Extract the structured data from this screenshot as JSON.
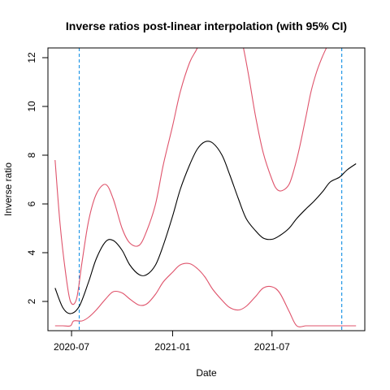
{
  "chart_data": {
    "type": "line",
    "title": "Inverse ratios post-linear interpolation (with 95% CI)",
    "xlabel": "Date",
    "ylabel": "Inverse ratio",
    "xlim": [
      "2020-05-19",
      "2021-12-17"
    ],
    "ylim": [
      0.8,
      12.4
    ],
    "x_ticks": [
      {
        "label": "2020-07",
        "date": "2020-07-01"
      },
      {
        "label": "2021-01",
        "date": "2021-01-01"
      },
      {
        "label": "2021-07",
        "date": "2021-07-01"
      }
    ],
    "y_ticks": [
      2,
      4,
      6,
      8,
      10,
      12
    ],
    "grid": false,
    "legend": "none",
    "colors": {
      "estimate": "#000000",
      "ci": "#DF536B",
      "reference": "#2297E6"
    },
    "reference_lines": [
      {
        "date": "2020-07-15"
      },
      {
        "date": "2021-11-05"
      }
    ],
    "series": [
      {
        "role": "estimate",
        "x": [
          "2020-06-01",
          "2020-06-15",
          "2020-06-29",
          "2020-07-15",
          "2020-08-01",
          "2020-08-15",
          "2020-09-01",
          "2020-09-15",
          "2020-10-01",
          "2020-10-15",
          "2020-11-01",
          "2020-11-15",
          "2020-12-01",
          "2020-12-15",
          "2021-01-01",
          "2021-01-15",
          "2021-02-01",
          "2021-02-15",
          "2021-03-01",
          "2021-03-15",
          "2021-04-01",
          "2021-04-15",
          "2021-05-01",
          "2021-05-15",
          "2021-06-01",
          "2021-06-15",
          "2021-07-01",
          "2021-07-15",
          "2021-08-01",
          "2021-08-15",
          "2021-09-01",
          "2021-09-15",
          "2021-10-01",
          "2021-10-15",
          "2021-11-01",
          "2021-11-15",
          "2021-12-01"
        ],
        "values": [
          2.55,
          1.75,
          1.5,
          1.8,
          2.8,
          3.75,
          4.45,
          4.5,
          4.1,
          3.5,
          3.1,
          3.1,
          3.5,
          4.3,
          5.5,
          6.6,
          7.6,
          8.25,
          8.55,
          8.5,
          8.0,
          7.2,
          6.2,
          5.4,
          4.9,
          4.6,
          4.55,
          4.7,
          5.0,
          5.4,
          5.8,
          6.1,
          6.5,
          6.9,
          7.1,
          7.4,
          7.65
        ]
      },
      {
        "role": "ci-upper",
        "x": [
          "2020-06-01",
          "2020-06-10",
          "2020-06-20",
          "2020-06-29",
          "2020-07-10",
          "2020-07-20",
          "2020-08-01",
          "2020-08-15",
          "2020-09-01",
          "2020-09-15",
          "2020-10-01",
          "2020-10-15",
          "2020-11-01",
          "2020-11-15",
          "2020-12-01",
          "2020-12-15",
          "2021-01-01",
          "2021-01-15",
          "2021-02-01",
          "2021-02-15",
          "2021-02-28",
          "2021-03-10",
          "2021-04-20",
          "2021-05-01",
          "2021-05-10",
          "2021-05-20",
          "2021-06-01",
          "2021-06-15",
          "2021-07-01",
          "2021-07-10",
          "2021-07-20",
          "2021-08-01",
          "2021-08-10",
          "2021-08-20",
          "2021-09-01",
          "2021-09-10",
          "2021-09-20",
          "2021-09-30",
          "2021-10-08"
        ],
        "values": [
          7.8,
          5.2,
          3.2,
          2.0,
          2.1,
          3.6,
          5.3,
          6.4,
          6.8,
          6.2,
          5.0,
          4.4,
          4.3,
          4.9,
          6.0,
          7.6,
          9.2,
          10.6,
          11.8,
          12.4,
          13.2,
          14.0,
          14.0,
          13.2,
          12.4,
          11.2,
          9.6,
          8.1,
          7.0,
          6.6,
          6.55,
          6.8,
          7.4,
          8.3,
          9.6,
          10.6,
          11.4,
          12.0,
          12.4
        ]
      },
      {
        "role": "ci-lower",
        "x": [
          "2020-06-01",
          "2020-06-15",
          "2020-06-29",
          "2020-07-05",
          "2020-07-20",
          "2020-08-01",
          "2020-08-15",
          "2020-09-01",
          "2020-09-15",
          "2020-10-01",
          "2020-10-15",
          "2020-11-01",
          "2020-11-15",
          "2020-12-01",
          "2020-12-15",
          "2021-01-01",
          "2021-01-15",
          "2021-02-01",
          "2021-02-15",
          "2021-03-01",
          "2021-03-15",
          "2021-04-01",
          "2021-04-15",
          "2021-05-01",
          "2021-05-15",
          "2021-06-01",
          "2021-06-15",
          "2021-07-01",
          "2021-07-15",
          "2021-08-01",
          "2021-08-15",
          "2021-09-01",
          "2021-09-15",
          "2021-10-01",
          "2021-10-15",
          "2021-11-01",
          "2021-11-15",
          "2021-12-01"
        ],
        "values": [
          1.0,
          1.0,
          1.0,
          1.2,
          1.2,
          1.35,
          1.65,
          2.1,
          2.4,
          2.35,
          2.1,
          1.85,
          1.9,
          2.3,
          2.8,
          3.2,
          3.5,
          3.55,
          3.35,
          3.0,
          2.5,
          2.05,
          1.75,
          1.65,
          1.8,
          2.2,
          2.55,
          2.6,
          2.35,
          1.6,
          1.0,
          1.0,
          1.0,
          1.0,
          1.0,
          1.0,
          1.0,
          1.0
        ]
      }
    ]
  }
}
